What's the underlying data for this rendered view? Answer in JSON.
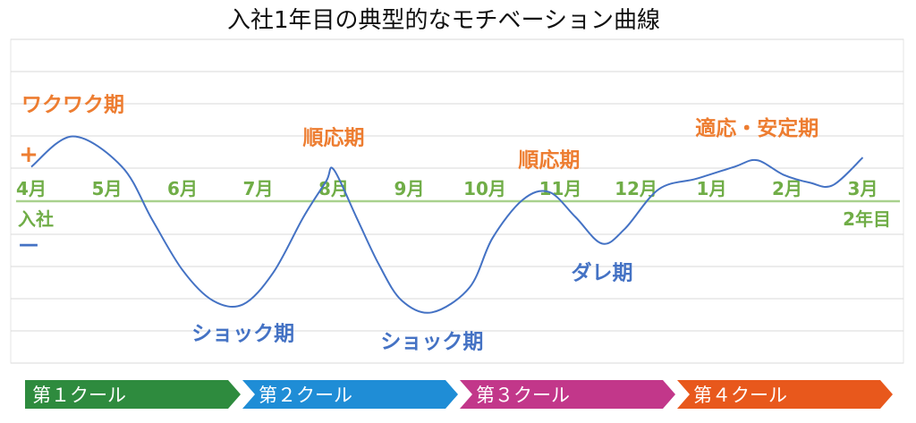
{
  "chart_data": {
    "type": "line",
    "title": "入社1年目の典型的なモチベーション曲線",
    "categories": [
      "4月",
      "5月",
      "6月",
      "7月",
      "8月",
      "9月",
      "10月",
      "11月",
      "12月",
      "1月",
      "2月",
      "3月"
    ],
    "axis_start_label": "入社",
    "axis_end_label": "2年目",
    "plus_label": "+",
    "minus_label": "－",
    "ylim": [
      -10,
      10
    ],
    "grid": true,
    "series": [
      {
        "points": [
          [
            0.0,
            2.6
          ],
          [
            0.55,
            4.9
          ],
          [
            1.2,
            2.6
          ],
          [
            1.6,
            -1.4
          ],
          [
            2.0,
            -5.2
          ],
          [
            2.4,
            -7.5
          ],
          [
            2.8,
            -7.8
          ],
          [
            3.2,
            -5.4
          ],
          [
            3.6,
            -1.2
          ],
          [
            3.9,
            1.5
          ],
          [
            4.0,
            2.4
          ],
          [
            4.3,
            -1.2
          ],
          [
            4.6,
            -4.8
          ],
          [
            4.9,
            -7.5
          ],
          [
            5.3,
            -8.4
          ],
          [
            5.8,
            -6.5
          ],
          [
            6.1,
            -2.8
          ],
          [
            6.5,
            0.1
          ],
          [
            6.85,
            0.7
          ],
          [
            7.2,
            -1.2
          ],
          [
            7.55,
            -3.2
          ],
          [
            7.85,
            -2.1
          ],
          [
            8.3,
            0.9
          ],
          [
            8.8,
            1.7
          ],
          [
            9.3,
            2.6
          ],
          [
            9.6,
            3.1
          ],
          [
            9.95,
            2.0
          ],
          [
            10.3,
            1.4
          ],
          [
            10.6,
            1.2
          ],
          [
            11.0,
            3.3
          ]
        ]
      }
    ],
    "phase_labels": [
      {
        "text": "ワクワク期",
        "x": 0.55,
        "y": 4.9,
        "tone": "positive",
        "pos": "above"
      },
      {
        "text": "ショック期",
        "x": 2.8,
        "y": -7.8,
        "tone": "negative",
        "pos": "below"
      },
      {
        "text": "順応期",
        "x": 4.0,
        "y": 2.4,
        "tone": "positive",
        "pos": "above"
      },
      {
        "text": "ショック期",
        "x": 5.3,
        "y": -8.4,
        "tone": "negative",
        "pos": "below"
      },
      {
        "text": "順応期",
        "x": 6.85,
        "y": 0.7,
        "tone": "positive",
        "pos": "above"
      },
      {
        "text": "ダレ期",
        "x": 7.55,
        "y": -3.2,
        "tone": "negative",
        "pos": "below"
      },
      {
        "text": "適応・安定期",
        "x": 9.6,
        "y": 3.1,
        "tone": "positive",
        "pos": "above"
      }
    ],
    "colors": {
      "line": "#4472c4",
      "axis": "#a9d18e",
      "month_text": "#70ad47",
      "positive": "#ed7d31",
      "negative": "#4472c4",
      "grid": "#d9d9d9"
    }
  },
  "cools": [
    {
      "label": "第１クール",
      "color": "#2e8b3e"
    },
    {
      "label": "第２クール",
      "color": "#1f8dd6"
    },
    {
      "label": "第３クール",
      "color": "#c2378a"
    },
    {
      "label": "第４クール",
      "color": "#e8581c"
    }
  ]
}
